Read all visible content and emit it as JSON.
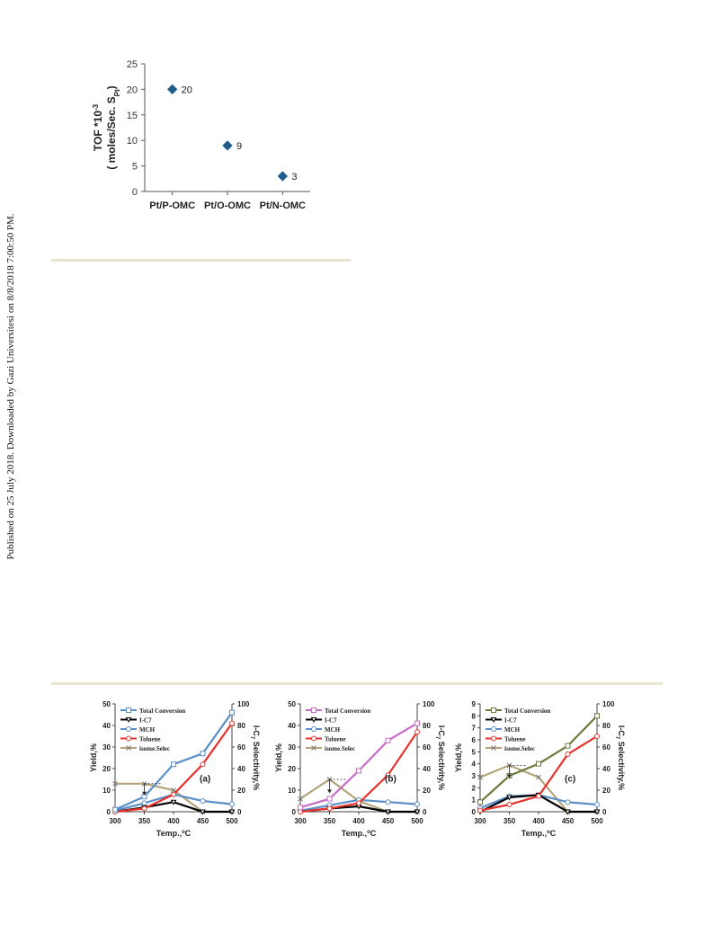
{
  "sidebar_text": "Published on 25 July 2018. Downloaded by Gazi Universitesi on 8/8/2018 7:00:50 PM.",
  "colors": {
    "rule": "#e8e4d0",
    "tof_marker": "#1f5c8b",
    "total_conversion_a": "#5b8fc9",
    "total_conversion_b": "#c86dc6",
    "total_conversion_c": "#6b7a3c",
    "i_c7": "#000000",
    "mch": "#5b8fc9",
    "toluene": "#e8322d",
    "isome_selec": "#b3a579"
  },
  "chart_data": [
    {
      "type": "scatter",
      "categories": [
        "Pt/P-OMC",
        "Pt/O-OMC",
        "Pt/N-OMC"
      ],
      "values": [
        20,
        9,
        3
      ],
      "data_labels": [
        "20",
        "9",
        "3"
      ],
      "ylabel_line1": "TOF *10",
      "ylabel_sup": "-3",
      "ylabel_line2": "( moles/Sec. S",
      "ylabel_sub": "Pt",
      "ylabel_end": ")",
      "ylim": [
        0,
        25
      ],
      "yticks": [
        "0",
        "5",
        "10",
        "15",
        "20",
        "25"
      ],
      "grid": false
    },
    {
      "type": "line",
      "panel_label": "(a)",
      "x": [
        300,
        350,
        400,
        450,
        500
      ],
      "xticks": [
        "300",
        "350",
        "400",
        "450",
        "500"
      ],
      "xlabel": "Temp.,",
      "xlabel_sup": "o",
      "xlabel_end": "C",
      "ylabel": "Yield,%",
      "ylim": [
        0,
        50
      ],
      "yticks": [
        "0",
        "10",
        "20",
        "30",
        "40",
        "50"
      ],
      "y2label_pre": "I-C",
      "y2label_sub": "7",
      "y2label_post": " Selectivity,%",
      "y2lim": [
        0,
        100
      ],
      "y2ticks": [
        "0",
        "20",
        "40",
        "60",
        "80",
        "100"
      ],
      "legend_position": "top-left",
      "series": [
        {
          "name": "Total Conversion",
          "axis": "left",
          "values": [
            1,
            7,
            22,
            27,
            46
          ]
        },
        {
          "name": "I-C7",
          "axis": "left",
          "values": [
            0,
            2,
            4.5,
            0,
            0
          ]
        },
        {
          "name": "MCH",
          "axis": "left",
          "values": [
            0.5,
            4,
            8,
            5,
            3.5
          ]
        },
        {
          "name": "Toluene",
          "axis": "left",
          "values": [
            0,
            1.5,
            8,
            22,
            41
          ]
        },
        {
          "name": "isome.Selec",
          "axis": "right",
          "values": [
            26,
            26,
            20,
            0,
            0
          ]
        }
      ],
      "annotation_arrow": {
        "x": 350,
        "from": 26,
        "to": 16
      }
    },
    {
      "type": "line",
      "panel_label": "(b)",
      "x": [
        300,
        350,
        400,
        450,
        500
      ],
      "xticks": [
        "300",
        "350",
        "400",
        "450",
        "500"
      ],
      "xlabel": "Temp.,",
      "xlabel_sup": "o",
      "xlabel_end": "C",
      "ylabel": "Yield,%",
      "ylim": [
        0,
        50
      ],
      "yticks": [
        "0",
        "10",
        "20",
        "30",
        "40",
        "50"
      ],
      "y2label_pre": "I-C",
      "y2label_sub": "7",
      "y2label_post": " Selectivity,%",
      "y2lim": [
        0,
        100
      ],
      "y2ticks": [
        "0",
        "20",
        "40",
        "60",
        "80",
        "100"
      ],
      "legend_position": "top-left",
      "series": [
        {
          "name": "Total Conversion",
          "axis": "left",
          "values": [
            2,
            6,
            19,
            33,
            41
          ]
        },
        {
          "name": "I-C7",
          "axis": "left",
          "values": [
            0,
            1.5,
            2.5,
            0,
            0
          ]
        },
        {
          "name": "MCH",
          "axis": "left",
          "values": [
            0.5,
            3,
            5.5,
            4.5,
            3.5
          ]
        },
        {
          "name": "Toluene",
          "axis": "left",
          "values": [
            0,
            1.5,
            4,
            17,
            37
          ]
        },
        {
          "name": "isome.Selec",
          "axis": "right",
          "values": [
            12,
            30,
            10,
            0,
            0
          ]
        }
      ],
      "annotation_arrow": {
        "x": 350,
        "from": 30,
        "to": 18
      }
    },
    {
      "type": "line",
      "panel_label": "(c)",
      "x": [
        300,
        350,
        400,
        450,
        500
      ],
      "xticks": [
        "300",
        "350",
        "400",
        "450",
        "500"
      ],
      "xlabel": "Temp.,",
      "xlabel_sup": "o",
      "xlabel_end": "C",
      "ylabel": "Yield,%",
      "ylim": [
        0,
        9
      ],
      "yticks": [
        "0",
        "1",
        "2",
        "3",
        "4",
        "5",
        "6",
        "7",
        "8",
        "9"
      ],
      "y2label_pre": "I-C",
      "y2label_sub": "7",
      "y2label_post": " Selectivity,%",
      "y2lim": [
        0,
        100
      ],
      "y2ticks": [
        "0",
        "20",
        "40",
        "60",
        "80",
        "100"
      ],
      "legend_position": "top-left",
      "series": [
        {
          "name": "Total Conversion",
          "axis": "left",
          "values": [
            0.8,
            3,
            4,
            5.5,
            8
          ]
        },
        {
          "name": "I-C7",
          "axis": "left",
          "values": [
            0,
            1.2,
            1.4,
            0,
            0
          ]
        },
        {
          "name": "MCH",
          "axis": "left",
          "values": [
            0.3,
            1.3,
            1.4,
            0.8,
            0.6
          ]
        },
        {
          "name": "Toluene",
          "axis": "left",
          "values": [
            0.1,
            0.6,
            1.3,
            4.8,
            6.3
          ]
        },
        {
          "name": "isome.Selec",
          "axis": "right",
          "values": [
            32,
            43,
            32,
            0,
            0
          ]
        }
      ],
      "annotation_arrow": {
        "x": 350,
        "from": 43,
        "to": 32
      }
    }
  ]
}
